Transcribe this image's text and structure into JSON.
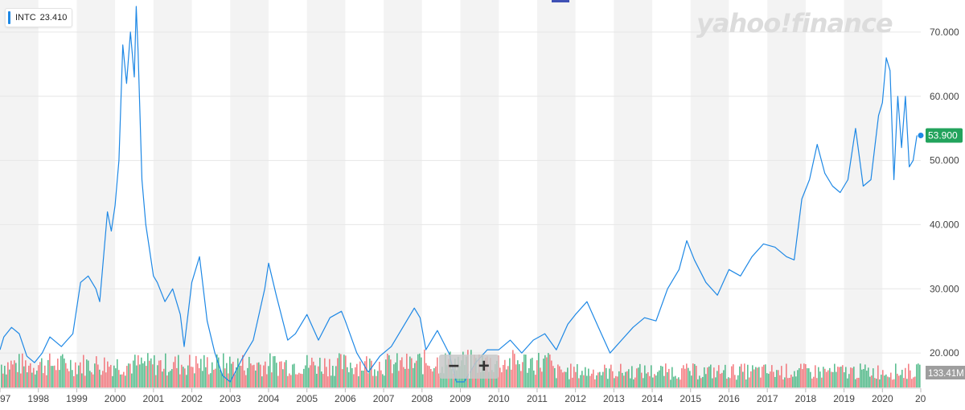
{
  "legend": {
    "symbol": "INTC",
    "value": "23.410"
  },
  "logo": "yahoo!finance",
  "zoom": {
    "minus": "−",
    "plus": "+"
  },
  "current_price_label": "53.900",
  "volume_label": "133.41M",
  "colors": {
    "line": "#1e88e5",
    "up": "#26a96c",
    "down": "#f2575d",
    "price_badge": "#22a35c",
    "band": "#f3f3f3"
  },
  "chart_data": {
    "type": "line",
    "title": "",
    "xlabel": "",
    "ylabel": "",
    "ylim": [
      14.5,
      75
    ],
    "xlim": [
      1997.0,
      2021.0
    ],
    "y_ticks": [
      "70.000",
      "60.000",
      "50.000",
      "40.000",
      "30.000",
      "20.000"
    ],
    "x_ticks": [
      "1997",
      "1998",
      "1999",
      "2000",
      "2001",
      "2002",
      "2003",
      "2004",
      "2005",
      "2006",
      "2007",
      "2008",
      "2009",
      "2010",
      "2011",
      "2012",
      "2013",
      "2014",
      "2015",
      "2016",
      "2017",
      "2018",
      "2019",
      "2020",
      "2021"
    ],
    "x_tick_labels": [
      "97",
      "1998",
      "1999",
      "2000",
      "2001",
      "2002",
      "2003",
      "2004",
      "2005",
      "2006",
      "2007",
      "2008",
      "2009",
      "2010",
      "2011",
      "2012",
      "2013",
      "2014",
      "2015",
      "2016",
      "2017",
      "2018",
      "2019",
      "2020",
      "20"
    ],
    "grid": true,
    "series": [
      {
        "x": [
          1997.0,
          1997.1,
          1997.3,
          1997.5,
          1997.7,
          1997.9,
          1998.1,
          1998.3,
          1998.6,
          1998.9,
          1999.1,
          1999.3,
          1999.5,
          1999.6,
          1999.8,
          1999.9,
          2000.0,
          2000.1,
          2000.2,
          2000.3,
          2000.4,
          2000.5,
          2000.55,
          2000.6,
          2000.7,
          2000.8,
          2000.9,
          2001.0,
          2001.1,
          2001.3,
          2001.5,
          2001.7,
          2001.8,
          2002.0,
          2002.2,
          2002.4,
          2002.6,
          2002.8,
          2003.0,
          2003.3,
          2003.6,
          2003.9,
          2004.0,
          2004.2,
          2004.5,
          2004.7,
          2005.0,
          2005.3,
          2005.6,
          2005.9,
          2006.0,
          2006.3,
          2006.6,
          2006.9,
          2007.2,
          2007.5,
          2007.8,
          2007.95,
          2008.1,
          2008.4,
          2008.7,
          2008.9,
          2009.1,
          2009.4,
          2009.7,
          2010.0,
          2010.3,
          2010.6,
          2010.9,
          2011.2,
          2011.5,
          2011.8,
          2012.0,
          2012.3,
          2012.6,
          2012.9,
          2013.2,
          2013.5,
          2013.8,
          2014.1,
          2014.4,
          2014.7,
          2014.9,
          2015.1,
          2015.4,
          2015.7,
          2016.0,
          2016.3,
          2016.6,
          2016.9,
          2017.2,
          2017.5,
          2017.7,
          2017.9,
          2018.1,
          2018.3,
          2018.5,
          2018.7,
          2018.9,
          2019.1,
          2019.3,
          2019.5,
          2019.7,
          2019.9,
          2020.0,
          2020.1,
          2020.2,
          2020.3,
          2020.4,
          2020.5,
          2020.6,
          2020.7,
          2020.8,
          2020.9
        ],
        "values": [
          20.5,
          22.5,
          24.0,
          23.0,
          19.5,
          18.5,
          20.0,
          22.5,
          21.0,
          23.0,
          31.0,
          32.0,
          30.0,
          28.0,
          42.0,
          39.0,
          43.0,
          50.0,
          68.0,
          62.0,
          70.0,
          63.0,
          74.0,
          67.0,
          47.0,
          40.0,
          36.0,
          32.0,
          31.0,
          28.0,
          30.0,
          26.0,
          21.0,
          31.0,
          35.0,
          25.0,
          20.0,
          16.5,
          15.5,
          19.0,
          22.0,
          30.0,
          34.0,
          29.0,
          22.0,
          23.0,
          26.0,
          22.0,
          25.5,
          26.5,
          25.0,
          20.0,
          17.0,
          19.5,
          21.0,
          24.0,
          27.0,
          25.5,
          20.5,
          23.5,
          20.0,
          15.5,
          15.5,
          18.5,
          20.5,
          20.5,
          22.0,
          20.0,
          22.0,
          23.0,
          20.5,
          24.5,
          26.0,
          28.0,
          24.0,
          20.0,
          22.0,
          24.0,
          25.5,
          25.0,
          30.0,
          33.0,
          37.5,
          34.5,
          31.0,
          29.0,
          33.0,
          32.0,
          35.0,
          37.0,
          36.5,
          35.0,
          34.5,
          44.0,
          47.0,
          52.5,
          48.0,
          46.0,
          45.0,
          47.0,
          55.0,
          46.0,
          47.0,
          57.0,
          59.0,
          66.0,
          64.0,
          47.0,
          60.0,
          52.0,
          60.0,
          49.0,
          50.0,
          53.9
        ]
      }
    ],
    "volume": {
      "label": "133.41M"
    }
  }
}
